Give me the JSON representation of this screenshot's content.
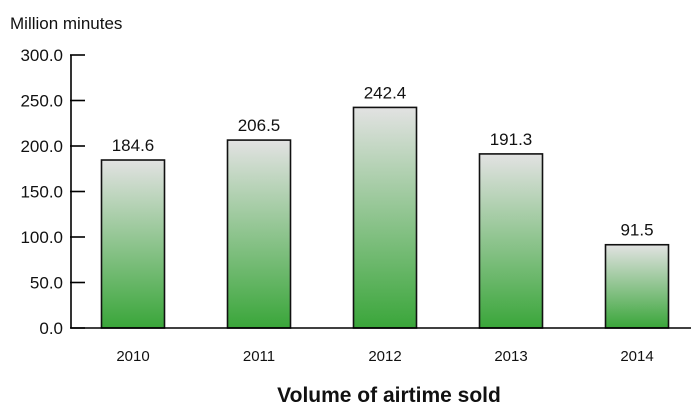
{
  "chart_data": {
    "type": "bar",
    "title": "Volume of airtime sold",
    "ylabel": "Million minutes",
    "xlabel": "",
    "categories": [
      "2010",
      "2011",
      "2012",
      "2013",
      "2014"
    ],
    "values": [
      184.6,
      206.5,
      242.4,
      191.3,
      91.5
    ],
    "value_labels": [
      "184.6",
      "206.5",
      "242.4",
      "191.3",
      "91.5"
    ],
    "ylim": [
      0,
      300
    ],
    "yticks": [
      0,
      50,
      100,
      150,
      200,
      250,
      300
    ],
    "ytick_labels": [
      "0.0",
      "50.0",
      "100.0",
      "150.0",
      "200.0",
      "250.0",
      "300.0"
    ],
    "grid": false,
    "legend": "none",
    "colors": {
      "bar_top": "#e2e2e2",
      "bar_bottom": "#3aa63a",
      "bar_outline": "#111111"
    }
  }
}
